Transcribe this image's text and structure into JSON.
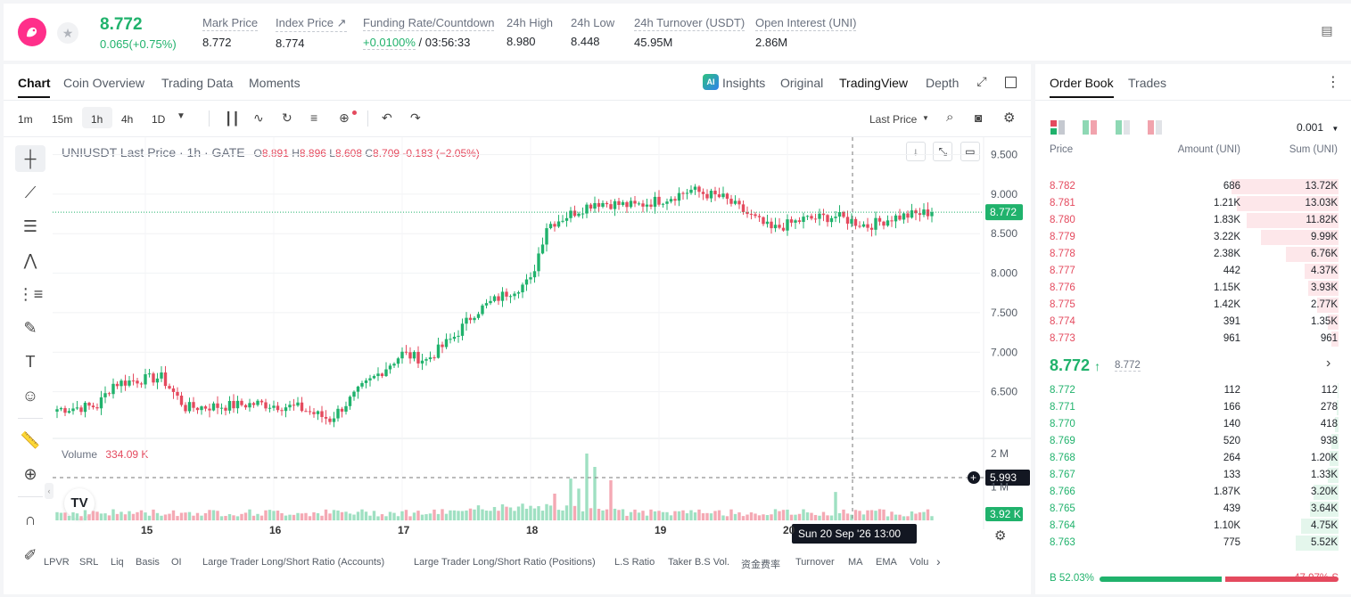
{
  "header": {
    "price": "8.772",
    "change": "0.065(+0.75%)",
    "stats": [
      {
        "label": "Mark Price",
        "value": "8.772"
      },
      {
        "label": "Index Price ↗",
        "value": "8.774"
      },
      {
        "label": "Funding Rate/Countdown",
        "value_rate": "+0.0100%",
        "value_countdown": " / 03:56:33"
      },
      {
        "label": "24h High",
        "value": "8.980"
      },
      {
        "label": "24h Low",
        "value": "8.448"
      },
      {
        "label": "24h Turnover (USDT)",
        "value": "45.95M"
      },
      {
        "label": "Open Interest (UNI)",
        "value": "2.86M"
      }
    ]
  },
  "chart_tabs": [
    "Chart",
    "Coin Overview",
    "Trading Data",
    "Moments"
  ],
  "chart_views": {
    "insights": "Insights",
    "original": "Original",
    "tradingview": "TradingView",
    "depth": "Depth",
    "ai_badge": "AI"
  },
  "intervals": [
    "1m",
    "15m",
    "1h",
    "4h",
    "1D"
  ],
  "price_source": "Last Price",
  "legend": {
    "symbol": "UNIUSDT Last Price · 1h · GATE",
    "o_label": "O",
    "o": "8.891",
    "h_label": "H",
    "h": "8.896",
    "l_label": "L",
    "l": "8.608",
    "c_label": "C",
    "c": "8.709",
    "chg": "-0.183 (−2.05%)"
  },
  "volume_legend": {
    "label": "Volume",
    "value": "334.09 K"
  },
  "price_tag": "8.772",
  "cross_tag": "5.993",
  "volume_tag": "3.92 K",
  "crosshair_time": "Sun 20 Sep '26   13:00",
  "indicators": [
    "LPVR",
    "SRL",
    "Liq",
    "Basis",
    "OI",
    "Large Trader Long/Short Ratio (Accounts)",
    "Large Trader Long/Short Ratio (Positions)",
    "L.S Ratio",
    "Taker B.S Vol.",
    "资金费率",
    "Turnover",
    "MA",
    "EMA",
    "Volu"
  ],
  "chart_data": {
    "type": "candlestick",
    "x_ticks": [
      "15",
      "16",
      "17",
      "18",
      "19",
      "20"
    ],
    "y_ticks": [
      "9.500",
      "9.000",
      "8.500",
      "8.000",
      "7.500",
      "7.000",
      "6.500"
    ],
    "ylim": [
      6.0,
      9.72
    ],
    "volume_ticks": [
      "2 M",
      "1 M"
    ],
    "volume_ylim": [
      0,
      2.4
    ],
    "interval": "1h",
    "close_anchors": [
      [
        0,
        6.28
      ],
      [
        10,
        6.32
      ],
      [
        14,
        6.6
      ],
      [
        20,
        6.65
      ],
      [
        26,
        6.68
      ],
      [
        32,
        6.3
      ],
      [
        42,
        6.32
      ],
      [
        50,
        6.35
      ],
      [
        60,
        6.3
      ],
      [
        68,
        6.15
      ],
      [
        76,
        6.55
      ],
      [
        86,
        6.98
      ],
      [
        92,
        6.9
      ],
      [
        99,
        7.2
      ],
      [
        104,
        7.5
      ],
      [
        112,
        7.75
      ],
      [
        118,
        7.9
      ],
      [
        122,
        8.6
      ],
      [
        128,
        8.75
      ],
      [
        134,
        8.9
      ],
      [
        144,
        8.85
      ],
      [
        152,
        8.95
      ],
      [
        158,
        9.05
      ],
      [
        166,
        8.95
      ],
      [
        172,
        8.75
      ],
      [
        178,
        8.55
      ],
      [
        186,
        8.68
      ],
      [
        194,
        8.72
      ],
      [
        202,
        8.6
      ],
      [
        208,
        8.7
      ],
      [
        212,
        8.73
      ],
      [
        216,
        8.76
      ],
      [
        218,
        8.772
      ]
    ],
    "volume_spikes": [
      [
        105,
        0.45
      ],
      [
        116,
        0.5
      ],
      [
        124,
        0.8
      ],
      [
        128,
        1.25
      ],
      [
        130,
        0.95
      ],
      [
        132,
        2.0
      ],
      [
        134,
        1.6
      ],
      [
        138,
        1.2
      ],
      [
        156,
        0.3
      ],
      [
        194,
        0.85
      ]
    ]
  },
  "order_book": {
    "tabs": [
      "Order Book",
      "Trades"
    ],
    "precision": "0.001",
    "columns": [
      "Price",
      "Amount (UNI)",
      "Sum (UNI)"
    ],
    "asks": [
      {
        "price": "8.782",
        "amount": "686",
        "sum": "13.72K",
        "depth": 13.72
      },
      {
        "price": "8.781",
        "amount": "1.21K",
        "sum": "13.03K",
        "depth": 13.03
      },
      {
        "price": "8.780",
        "amount": "1.83K",
        "sum": "11.82K",
        "depth": 11.82
      },
      {
        "price": "8.779",
        "amount": "3.22K",
        "sum": "9.99K",
        "depth": 9.99
      },
      {
        "price": "8.778",
        "amount": "2.38K",
        "sum": "6.76K",
        "depth": 6.76
      },
      {
        "price": "8.777",
        "amount": "442",
        "sum": "4.37K",
        "depth": 4.37
      },
      {
        "price": "8.776",
        "amount": "1.15K",
        "sum": "3.93K",
        "depth": 3.93
      },
      {
        "price": "8.775",
        "amount": "1.42K",
        "sum": "2.77K",
        "depth": 2.77
      },
      {
        "price": "8.774",
        "amount": "391",
        "sum": "1.35K",
        "depth": 1.35
      },
      {
        "price": "8.773",
        "amount": "961",
        "sum": "961",
        "depth": 0.961
      }
    ],
    "last_price": "8.772",
    "mark_price": "8.772",
    "bids": [
      {
        "price": "8.772",
        "amount": "112",
        "sum": "112",
        "depth": 0.112
      },
      {
        "price": "8.771",
        "amount": "166",
        "sum": "278",
        "depth": 0.278
      },
      {
        "price": "8.770",
        "amount": "140",
        "sum": "418",
        "depth": 0.418
      },
      {
        "price": "8.769",
        "amount": "520",
        "sum": "938",
        "depth": 0.938
      },
      {
        "price": "8.768",
        "amount": "264",
        "sum": "1.20K",
        "depth": 1.2
      },
      {
        "price": "8.767",
        "amount": "133",
        "sum": "1.33K",
        "depth": 1.33
      },
      {
        "price": "8.766",
        "amount": "1.87K",
        "sum": "3.20K",
        "depth": 3.2
      },
      {
        "price": "8.765",
        "amount": "439",
        "sum": "3.64K",
        "depth": 3.64
      },
      {
        "price": "8.764",
        "amount": "1.10K",
        "sum": "4.75K",
        "depth": 4.75
      },
      {
        "price": "8.763",
        "amount": "775",
        "sum": "5.52K",
        "depth": 5.52
      }
    ],
    "buy_label": "B",
    "buy_pct": "52.03%",
    "sell_label": "S",
    "sell_pct": "47.97%",
    "buy_ratio": 52.03
  },
  "colors": {
    "up": "#20b26c",
    "down": "#e44a5e",
    "up_vol": "#9fe0c2",
    "down_vol": "#f4a9b4"
  }
}
